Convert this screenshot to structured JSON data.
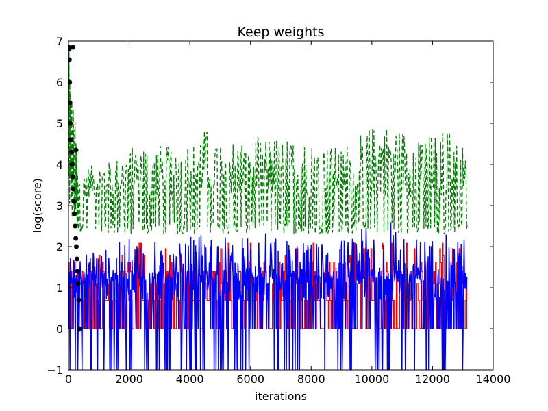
{
  "chart_data": {
    "type": "line",
    "title": "Keep weights",
    "xlabel": "iterations",
    "ylabel": "log(score)",
    "xlim": [
      0,
      14000
    ],
    "ylim": [
      -1,
      7
    ],
    "xticks": [
      0,
      2000,
      4000,
      6000,
      8000,
      10000,
      12000,
      14000
    ],
    "yticks": [
      -1,
      0,
      1,
      2,
      3,
      4,
      5,
      6,
      7
    ],
    "grid": false,
    "legend": "none",
    "x_max_observed": 13150,
    "series": [
      {
        "style": "dashed",
        "color": "#008000",
        "base_level": 2.3,
        "envelope": [
          [
            300,
            3.9
          ],
          [
            1500,
            4.1
          ],
          [
            2400,
            4.6
          ],
          [
            3500,
            4.4
          ],
          [
            4400,
            4.9
          ],
          [
            5500,
            4.6
          ],
          [
            6400,
            4.7
          ],
          [
            7600,
            4.6
          ],
          [
            9000,
            4.4
          ],
          [
            9900,
            4.9
          ],
          [
            10700,
            5.05
          ],
          [
            11500,
            4.6
          ],
          [
            12500,
            4.9
          ],
          [
            13150,
            4.6
          ]
        ]
      },
      {
        "style": "solid",
        "color": "#ff0000",
        "levels": [
          0,
          0.69,
          1.1,
          1.39,
          1.61,
          1.79,
          1.95,
          2.08
        ],
        "max": 2.2
      },
      {
        "style": "solid",
        "color": "#0000ff",
        "min": -1,
        "envelope": [
          [
            300,
            1.8
          ],
          [
            2000,
            2.2
          ],
          [
            3500,
            2.1
          ],
          [
            4500,
            2.4
          ],
          [
            5800,
            2.2
          ],
          [
            6300,
            2.4
          ],
          [
            7800,
            2.1
          ],
          [
            9300,
            2.2
          ],
          [
            9800,
            2.5
          ],
          [
            10700,
            2.65
          ],
          [
            11500,
            2.2
          ],
          [
            12500,
            2.3
          ],
          [
            13150,
            2.2
          ]
        ]
      },
      {
        "style": "markers",
        "color": "#000000",
        "points": [
          [
            10,
            6.85
          ],
          [
            20,
            6.8
          ],
          [
            30,
            6.55
          ],
          [
            40,
            6.0
          ],
          [
            50,
            5.5
          ],
          [
            60,
            5.0
          ],
          [
            80,
            4.6
          ],
          [
            100,
            4.3
          ],
          [
            120,
            4.0
          ],
          [
            140,
            3.7
          ],
          [
            160,
            3.4
          ],
          [
            180,
            3.1
          ],
          [
            200,
            2.8
          ],
          [
            220,
            2.5
          ],
          [
            240,
            2.2
          ],
          [
            260,
            2.0
          ],
          [
            280,
            1.7
          ],
          [
            300,
            1.4
          ],
          [
            320,
            1.1
          ],
          [
            340,
            0.7
          ],
          [
            360,
            0.0
          ],
          [
            250,
            4.35
          ],
          [
            150,
            6.85
          ]
        ]
      }
    ]
  }
}
